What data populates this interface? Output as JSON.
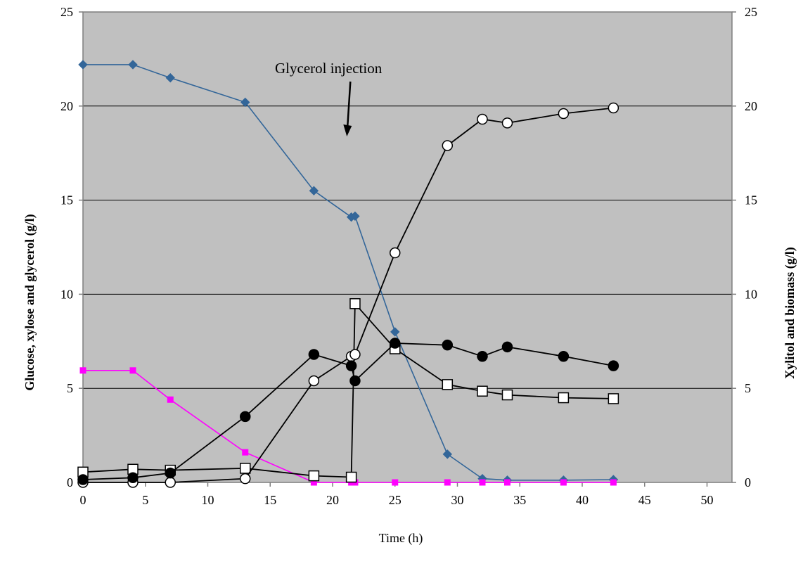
{
  "chart_data": {
    "type": "line",
    "xlabel": "Time (h)",
    "ylabel_left": "Glucose, xylose and glycerol (g/l)",
    "ylabel_right": "Xylitol and biomass (g/l)",
    "xlim": [
      0,
      52
    ],
    "ylim_left": [
      0,
      25
    ],
    "ylim_right": [
      0,
      25
    ],
    "x_ticks": [
      0,
      5,
      10,
      15,
      20,
      25,
      30,
      35,
      40,
      45,
      50
    ],
    "y_ticks": [
      0,
      5,
      10,
      15,
      20,
      25
    ],
    "grid": "horizontal",
    "plot_background": "#c0c0c0",
    "annotation": {
      "text": "Glycerol injection",
      "arrow_x": 21.2,
      "arrow_from_y": 21.3,
      "arrow_to_y": 18.5
    },
    "series": [
      {
        "axis": "left",
        "marker": "diamond",
        "color": "#336699",
        "fill": "#336699",
        "x": [
          0,
          4,
          7,
          13,
          18.5,
          21.5,
          21.8,
          25,
          29.2,
          32,
          34,
          38.5,
          42.5
        ],
        "y": [
          22.2,
          22.2,
          21.5,
          20.2,
          15.5,
          14.1,
          14.15,
          8.0,
          1.5,
          0.2,
          0.12,
          0.12,
          0.15
        ]
      },
      {
        "axis": "left",
        "marker": "square",
        "color": "#ff00ff",
        "fill": "#ff00ff",
        "x": [
          0,
          4,
          7,
          13,
          18.5,
          21.5,
          21.8,
          25,
          29.2,
          32,
          34,
          38.5,
          42.5
        ],
        "y": [
          5.95,
          5.95,
          4.4,
          1.6,
          0.0,
          0.0,
          0.0,
          0.0,
          0.0,
          0.0,
          0.0,
          0.0,
          0.0
        ]
      },
      {
        "axis": "left",
        "marker": "open-square",
        "color": "#000000",
        "fill": "#ffffff",
        "x": [
          0,
          4,
          7,
          13,
          18.5,
          21.5,
          21.8,
          25,
          29.2,
          32,
          34,
          38.5,
          42.5
        ],
        "y": [
          0.55,
          0.7,
          0.65,
          0.75,
          0.35,
          0.28,
          9.5,
          7.1,
          5.2,
          4.85,
          4.65,
          4.5,
          4.45
        ]
      },
      {
        "axis": "right",
        "marker": "open-circle",
        "color": "#000000",
        "fill": "#ffffff",
        "x": [
          0,
          4,
          7,
          13,
          18.5,
          21.5,
          21.8,
          25,
          29.2,
          32,
          34,
          38.5,
          42.5
        ],
        "y": [
          0.0,
          0.0,
          0.0,
          0.2,
          5.4,
          6.7,
          6.8,
          12.2,
          17.9,
          19.3,
          19.1,
          19.6,
          19.9
        ]
      },
      {
        "axis": "right",
        "marker": "filled-circle",
        "color": "#000000",
        "fill": "#000000",
        "x": [
          0,
          4,
          7,
          13,
          18.5,
          21.5,
          21.8,
          25,
          29.2,
          32,
          34,
          38.5,
          42.5
        ],
        "y": [
          0.15,
          0.25,
          0.5,
          3.5,
          6.8,
          6.2,
          5.4,
          7.4,
          7.3,
          6.7,
          7.2,
          6.7,
          6.2
        ]
      }
    ]
  }
}
